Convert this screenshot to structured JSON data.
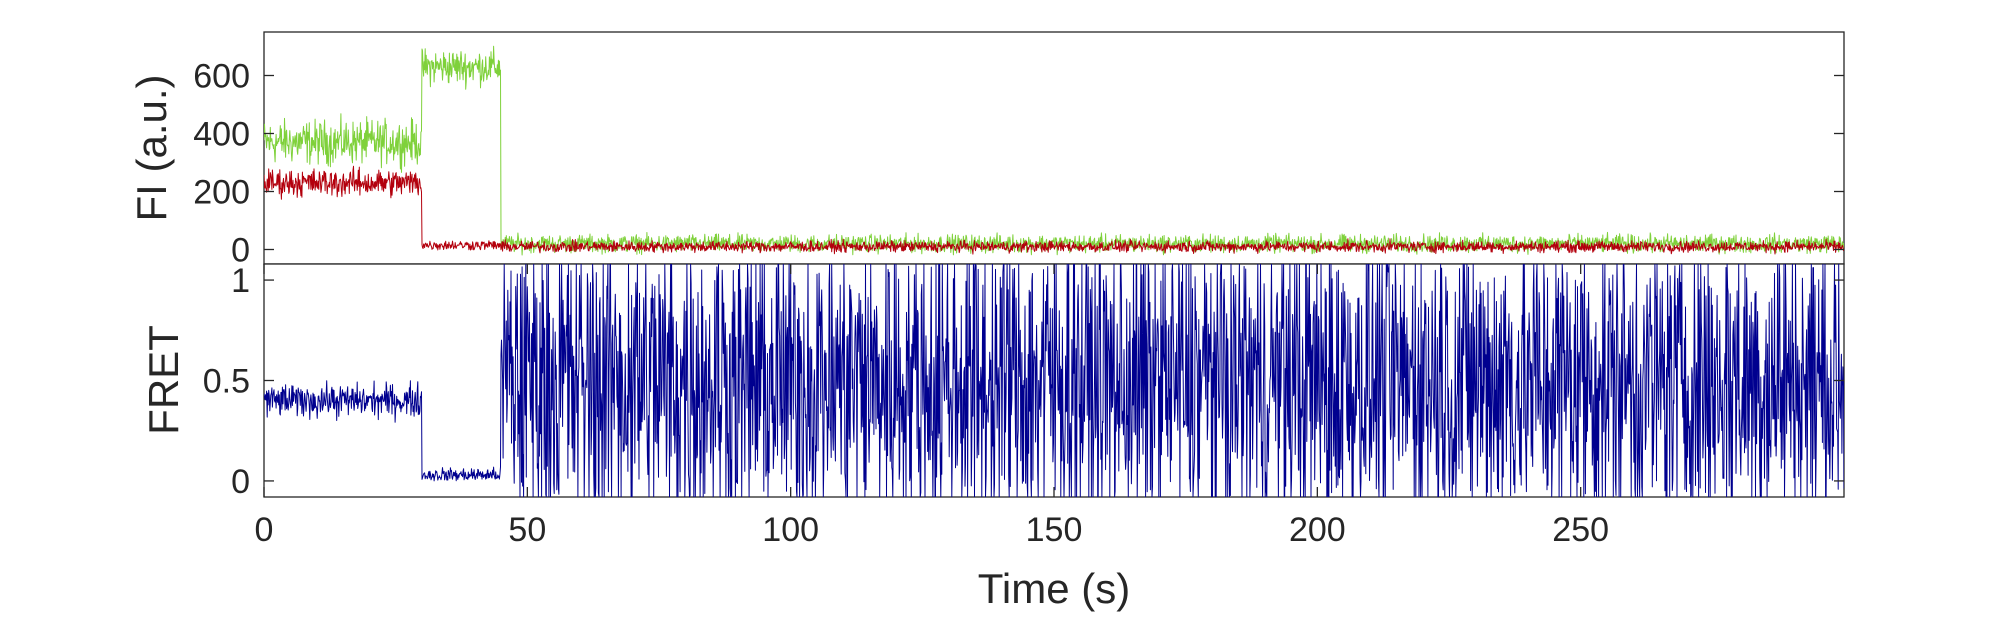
{
  "chart_data": [
    {
      "type": "line",
      "panel": "intensity",
      "ylabel": "FI (a.u.)",
      "xlabel": "",
      "xlim": [
        0,
        300
      ],
      "ylim": [
        -50,
        750
      ],
      "yticks": [
        0,
        200,
        400,
        600
      ],
      "ytick_labels": [
        "0",
        "200",
        "400",
        "600"
      ],
      "grid": false,
      "series": [
        {
          "color": "#7fd13b",
          "segments": [
            {
              "x": [
                0,
                30
              ],
              "mean": 370,
              "noise": 110
            },
            {
              "x": [
                30,
                45
              ],
              "mean": 630,
              "noise": 90
            },
            {
              "x": [
                45,
                300
              ],
              "mean": 20,
              "noise": 45
            }
          ]
        },
        {
          "color": "#b3000d",
          "segments": [
            {
              "x": [
                0,
                30
              ],
              "mean": 230,
              "noise": 70
            },
            {
              "x": [
                30,
                45
              ],
              "mean": 15,
              "noise": 25
            },
            {
              "x": [
                45,
                300
              ],
              "mean": 10,
              "noise": 28
            }
          ]
        }
      ]
    },
    {
      "type": "line",
      "panel": "fret",
      "ylabel": "FRET",
      "xlabel": "Time (s)",
      "xlim": [
        0,
        300
      ],
      "ylim": [
        -0.08,
        1.08
      ],
      "xticks": [
        0,
        50,
        100,
        150,
        200,
        250
      ],
      "xtick_labels": [
        "0",
        "50",
        "100",
        "150",
        "200",
        "250"
      ],
      "yticks": [
        0,
        0.5,
        1
      ],
      "ytick_labels": [
        "0",
        "0.5",
        "1"
      ],
      "grid": false,
      "series": [
        {
          "color": "#00008f",
          "segments": [
            {
              "x": [
                0,
                30
              ],
              "mean": 0.4,
              "noise": 0.12
            },
            {
              "x": [
                30,
                45
              ],
              "mean": 0.03,
              "noise": 0.05
            },
            {
              "x": [
                45,
                300
              ],
              "mean": 0.5,
              "noise": 1.2,
              "clip": [
                -0.08,
                1.08
              ]
            }
          ]
        }
      ]
    }
  ]
}
